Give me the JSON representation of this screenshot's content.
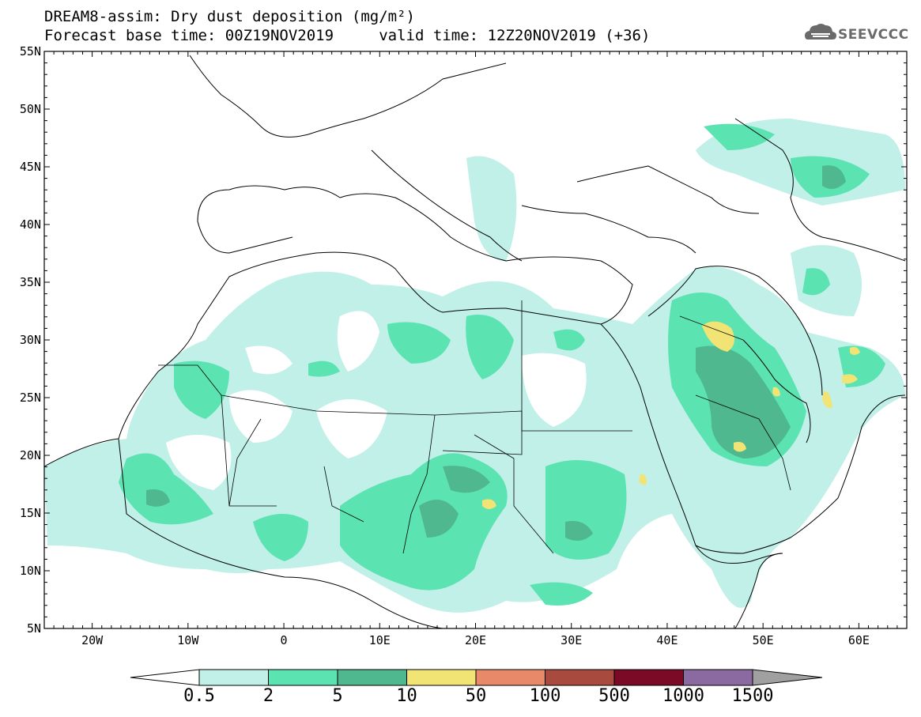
{
  "header": {
    "title_line1": "DREAM8-assim: Dry dust deposition (mg/m²)",
    "title_line2": "Forecast base time: 00Z19NOV2019     valid time: 12Z20NOV2019 (+36)"
  },
  "logo": {
    "text": "SEEVCCC",
    "icon": "cloud-icon"
  },
  "map": {
    "lon_range": [
      -25,
      65
    ],
    "lat_range": [
      5,
      55
    ],
    "lat_ticks": [
      "55N",
      "50N",
      "45N",
      "40N",
      "35N",
      "30N",
      "25N",
      "20N",
      "15N",
      "10N",
      "5N"
    ],
    "lon_ticks": [
      "20W",
      "10W",
      "0",
      "10E",
      "20E",
      "30E",
      "40E",
      "50E",
      "60E"
    ]
  },
  "colorbar": {
    "labels": [
      "0.5",
      "2",
      "5",
      "10",
      "50",
      "100",
      "500",
      "1000",
      "1500"
    ],
    "colors": [
      "#c0f0e8",
      "#5ce3b2",
      "#4fb88e",
      "#f2e474",
      "#e8896a",
      "#a84a3e",
      "#7a0a26",
      "#8a6aa0",
      "#a0a0a0"
    ]
  }
}
